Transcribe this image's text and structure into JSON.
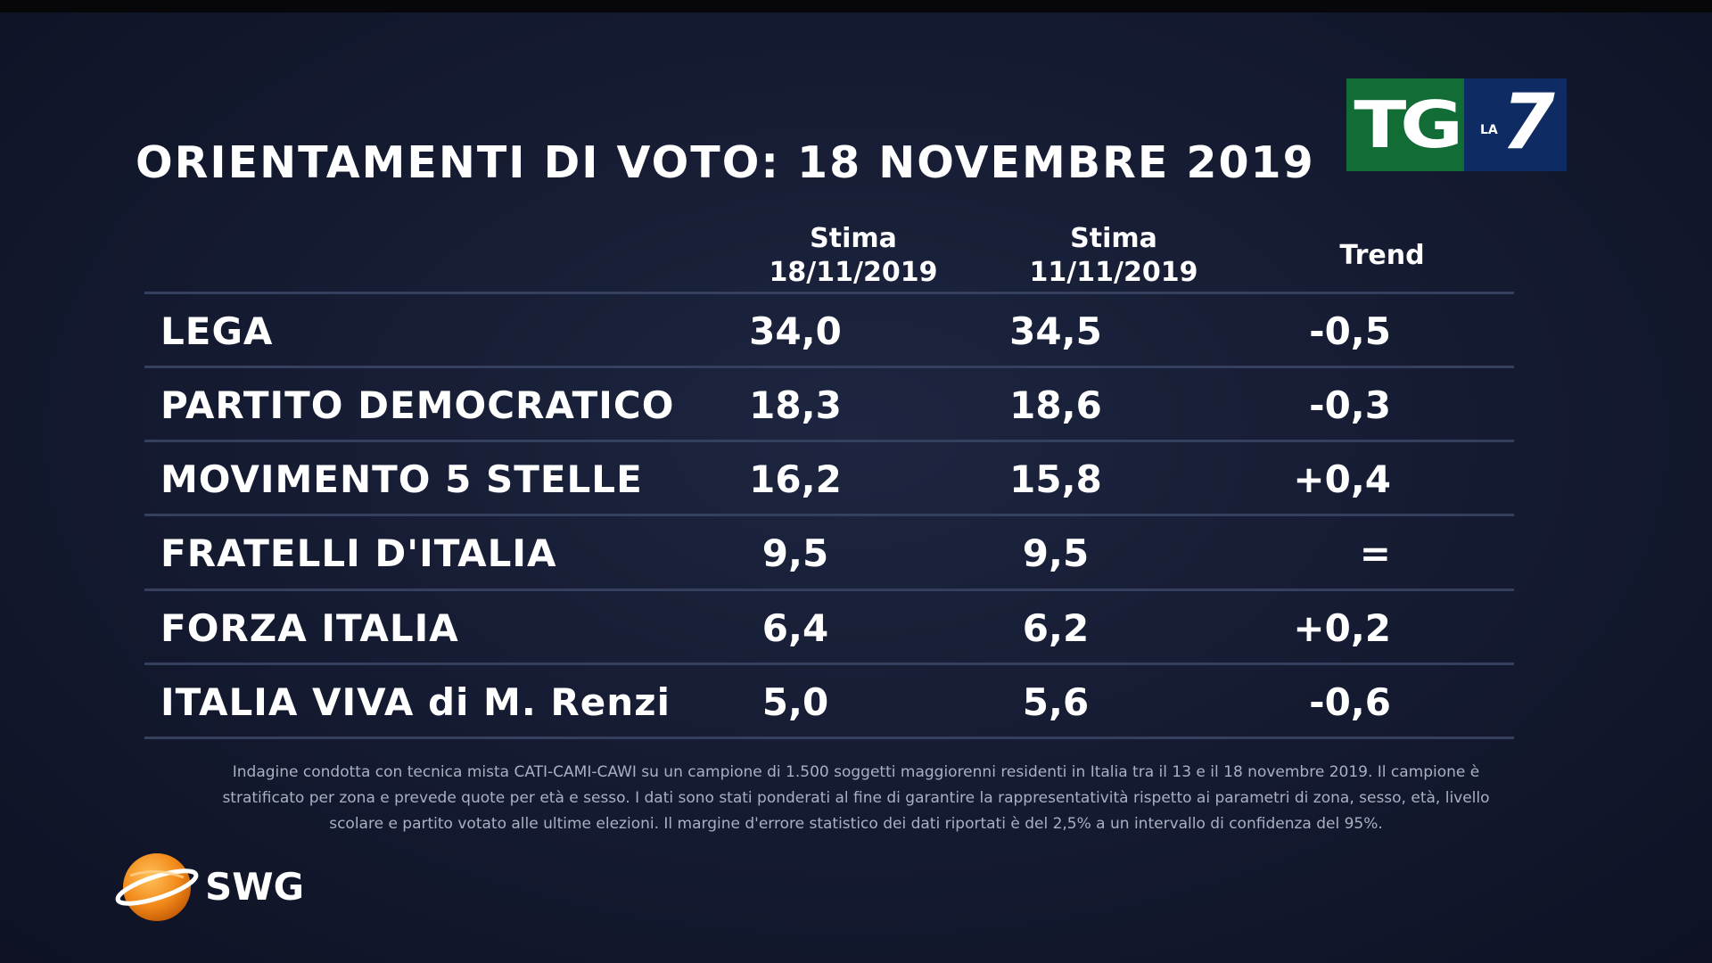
{
  "broadcast": {
    "logo_tg": "TG",
    "logo_la": "LA",
    "logo_seven": "7",
    "title": "ORIENTAMENTI DI VOTO: 18 NOVEMBRE 2019"
  },
  "table": {
    "columns": [
      {
        "line1": "Stima",
        "line2": "18/11/2019"
      },
      {
        "line1": "Stima",
        "line2": "11/11/2019"
      },
      {
        "line1": "Trend",
        "line2": ""
      }
    ],
    "rows": [
      {
        "party": "LEGA",
        "estimate_current": "34,0",
        "estimate_previous": "34,5",
        "trend": "-0,5"
      },
      {
        "party": "PARTITO DEMOCRATICO",
        "estimate_current": "18,3",
        "estimate_previous": "18,6",
        "trend": "-0,3"
      },
      {
        "party": "MOVIMENTO 5 STELLE",
        "estimate_current": "16,2",
        "estimate_previous": "15,8",
        "trend": "+0,4"
      },
      {
        "party": "FRATELLI D'ITALIA",
        "estimate_current": "9,5",
        "estimate_previous": "9,5",
        "trend": "="
      },
      {
        "party": "FORZA ITALIA",
        "estimate_current": "6,4",
        "estimate_previous": "6,2",
        "trend": "+0,2"
      },
      {
        "party": "ITALIA VIVA di M. Renzi",
        "estimate_current": "5,0",
        "estimate_previous": "5,6",
        "trend": "-0,6"
      }
    ]
  },
  "footnote": {
    "line1": "Indagine condotta con tecnica mista CATI-CAMI-CAWI su un campione di 1.500 soggetti maggiorenni residenti in Italia tra il 13 e il 18 novembre 2019. Il campione è",
    "line2": "stratificato per zona e prevede quote per età e sesso. I dati sono stati ponderati al fine di garantire la rappresentatività rispetto ai parametri di zona, sesso, età, livello",
    "line3": "scolare e partito votato alle ultime elezioni. Il margine d'errore statistico dei dati riportati è del 2,5% a un intervallo di confidenza del 95%."
  },
  "source": {
    "name": "SWG",
    "logo_icon": "swg-globe-icon"
  },
  "colors": {
    "background": "#141a30",
    "rule": "#34405e",
    "tg_green": "#116c36",
    "la7_blue": "#0e2c63",
    "swg_orange": "#f28a1a"
  },
  "chart_data": {
    "type": "table",
    "title": "ORIENTAMENTI DI VOTO: 18 NOVEMBRE 2019",
    "columns": [
      "Stima 18/11/2019",
      "Stima 11/11/2019",
      "Trend"
    ],
    "categories": [
      "LEGA",
      "PARTITO DEMOCRATICO",
      "MOVIMENTO 5 STELLE",
      "FRATELLI D'ITALIA",
      "FORZA ITALIA",
      "ITALIA VIVA di M. Renzi"
    ],
    "series": [
      {
        "name": "Stima 18/11/2019",
        "values": [
          34.0,
          18.3,
          16.2,
          9.5,
          6.4,
          5.0
        ]
      },
      {
        "name": "Stima 11/11/2019",
        "values": [
          34.5,
          18.6,
          15.8,
          9.5,
          6.2,
          5.6
        ]
      },
      {
        "name": "Trend",
        "values": [
          -0.5,
          -0.3,
          0.4,
          0.0,
          0.2,
          -0.6
        ]
      }
    ]
  }
}
